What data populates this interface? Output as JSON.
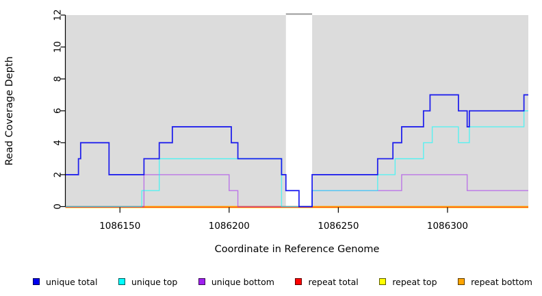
{
  "chart_data": {
    "type": "line",
    "subtype": "step",
    "title": "",
    "xlabel": "Coordinate in Reference Genome",
    "ylabel": "Read Coverage Depth",
    "xlim": [
      1086125,
      1086337
    ],
    "ylim": [
      0,
      12
    ],
    "xticks": [
      1086150,
      1086200,
      1086250,
      1086300
    ],
    "yticks": [
      0,
      2,
      4,
      6,
      8,
      10,
      12
    ],
    "grid": false,
    "legend_position": "bottom",
    "plot_background": "#DCDCDC",
    "masked_region": {
      "x0": 1086226,
      "x1": 1086238,
      "fill": "#FFFFFF",
      "marker_color": "#9A9A9A"
    },
    "series": [
      {
        "name": "unique total",
        "color": "#0000EE",
        "points": [
          [
            1086125,
            2
          ],
          [
            1086131,
            3
          ],
          [
            1086132,
            4
          ],
          [
            1086145,
            2
          ],
          [
            1086161,
            3
          ],
          [
            1086168,
            4
          ],
          [
            1086174,
            5
          ],
          [
            1086201,
            4
          ],
          [
            1086204,
            3
          ],
          [
            1086224,
            2
          ],
          [
            1086226,
            1
          ],
          [
            1086232,
            0
          ],
          [
            1086238,
            2
          ],
          [
            1086268,
            3
          ],
          [
            1086275,
            4
          ],
          [
            1086279,
            5
          ],
          [
            1086289,
            6
          ],
          [
            1086292,
            7
          ],
          [
            1086305,
            6
          ],
          [
            1086309,
            5
          ],
          [
            1086310,
            6
          ],
          [
            1086335,
            7
          ]
        ]
      },
      {
        "name": "unique top",
        "color": "#00FFFF",
        "points": [
          [
            1086125,
            0
          ],
          [
            1086160,
            1
          ],
          [
            1086168,
            3
          ],
          [
            1086224,
            0
          ],
          [
            1086238,
            1
          ],
          [
            1086268,
            2
          ],
          [
            1086276,
            3
          ],
          [
            1086289,
            4
          ],
          [
            1086293,
            5
          ],
          [
            1086305,
            4
          ],
          [
            1086310,
            5
          ],
          [
            1086335,
            6
          ]
        ]
      },
      {
        "name": "unique bottom",
        "color": "#A020F0",
        "points": [
          [
            1086125,
            0
          ],
          [
            1086161,
            2
          ],
          [
            1086200,
            1
          ],
          [
            1086204,
            0
          ],
          [
            1086238,
            1
          ],
          [
            1086279,
            2
          ],
          [
            1086309,
            1
          ]
        ]
      },
      {
        "name": "repeat total",
        "color": "#FF0000",
        "points": [
          [
            1086125,
            0
          ]
        ]
      },
      {
        "name": "repeat top",
        "color": "#FFFF00",
        "points": [
          [
            1086125,
            0
          ]
        ]
      },
      {
        "name": "repeat bottom",
        "color": "#FFA500",
        "points": [
          [
            1086125,
            0
          ]
        ]
      }
    ]
  }
}
